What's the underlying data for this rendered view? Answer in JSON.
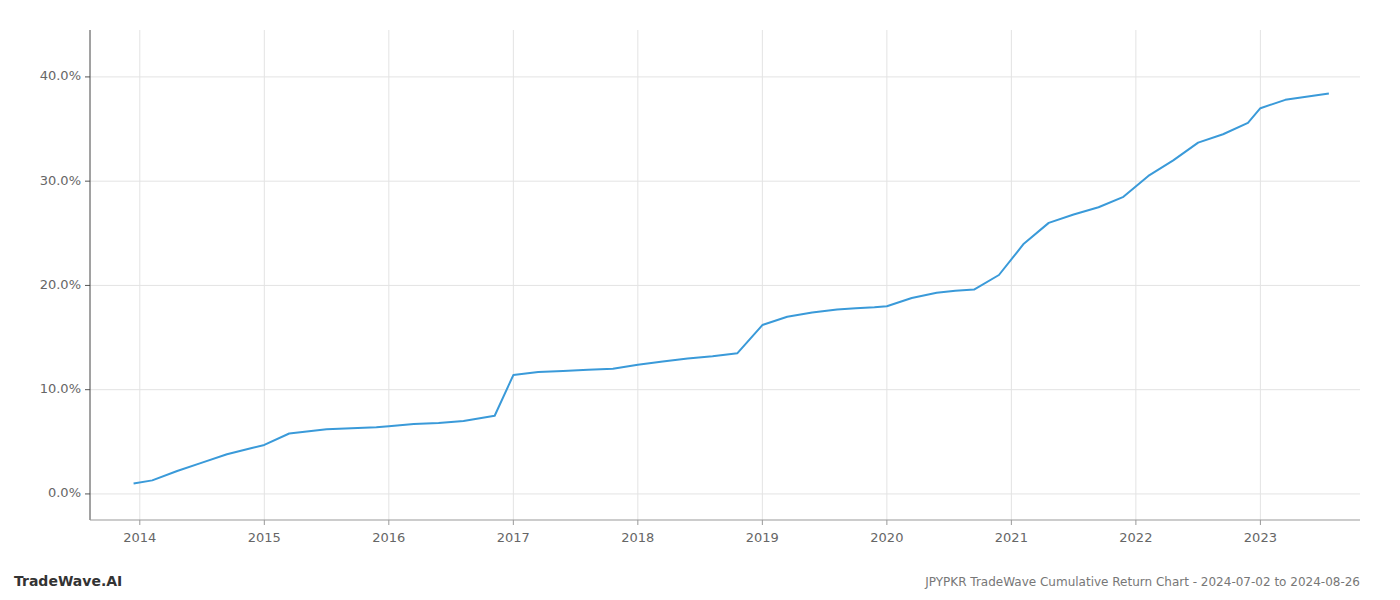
{
  "chart_data": {
    "type": "line",
    "title": "JPYPKR TradeWave Cumulative Return Chart - 2024-07-02 to 2024-08-26",
    "annotations": [
      "TradeWave.AI"
    ],
    "x": [
      2013.95,
      2014.1,
      2014.3,
      2014.5,
      2014.7,
      2014.9,
      2015.0,
      2015.2,
      2015.5,
      2015.7,
      2015.9,
      2016.0,
      2016.2,
      2016.4,
      2016.6,
      2016.85,
      2017.0,
      2017.2,
      2017.4,
      2017.6,
      2017.8,
      2018.0,
      2018.2,
      2018.4,
      2018.6,
      2018.8,
      2019.0,
      2019.2,
      2019.4,
      2019.6,
      2019.75,
      2019.9,
      2020.0,
      2020.2,
      2020.4,
      2020.55,
      2020.7,
      2020.9,
      2021.1,
      2021.3,
      2021.5,
      2021.7,
      2021.9,
      2022.1,
      2022.3,
      2022.5,
      2022.7,
      2022.9,
      2023.0,
      2023.2,
      2023.55
    ],
    "values": [
      0.01,
      0.013,
      0.022,
      0.03,
      0.038,
      0.044,
      0.047,
      0.058,
      0.062,
      0.063,
      0.064,
      0.065,
      0.067,
      0.068,
      0.07,
      0.075,
      0.114,
      0.117,
      0.118,
      0.119,
      0.12,
      0.124,
      0.127,
      0.13,
      0.132,
      0.135,
      0.162,
      0.17,
      0.174,
      0.177,
      0.178,
      0.179,
      0.18,
      0.188,
      0.193,
      0.195,
      0.196,
      0.21,
      0.24,
      0.26,
      0.268,
      0.275,
      0.285,
      0.305,
      0.32,
      0.337,
      0.345,
      0.356,
      0.37,
      0.378,
      0.384
    ],
    "color": "#3a9ad9",
    "xlim": [
      2013.6,
      2023.8
    ],
    "ylim": [
      -0.025,
      0.445
    ],
    "xticks": [
      2014,
      2015,
      2016,
      2017,
      2018,
      2019,
      2020,
      2021,
      2022,
      2023
    ],
    "yticks": [
      {
        "value": 0.0,
        "label": "0.0%"
      },
      {
        "value": 0.1,
        "label": "10.0%"
      },
      {
        "value": 0.2,
        "label": "20.0%"
      },
      {
        "value": 0.3,
        "label": "30.0%"
      },
      {
        "value": 0.4,
        "label": "40.0%"
      }
    ],
    "grid": true
  }
}
